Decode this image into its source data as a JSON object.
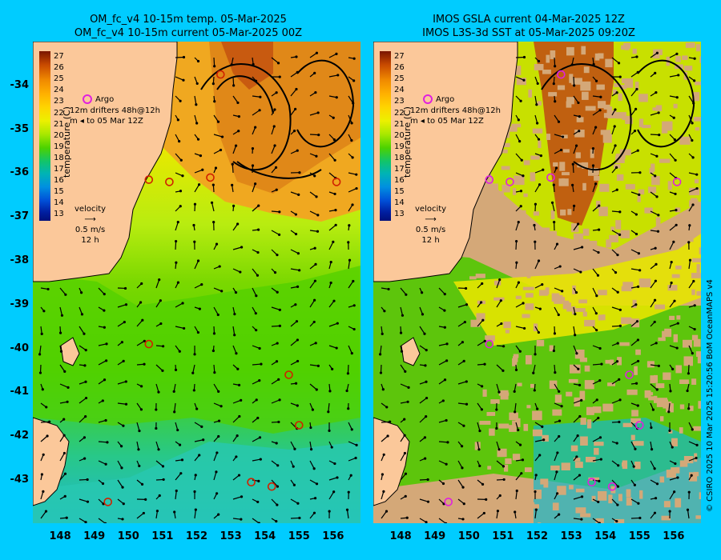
{
  "left_panel": {
    "title_line1": "OM_fc_v4  10-15m temp. 05-Mar-2025",
    "title_line2": "OM_fc_v4  10-15m current 05-Mar-2025 00Z"
  },
  "right_panel": {
    "title_line1": "IMOS GSLA current 04-Mar-2025 12Z",
    "title_line2": "IMOS L3S-3d SST at 05-Mar-2025 09:20Z"
  },
  "colorbar": {
    "title": "temperature (C)",
    "ticks": [
      "27",
      "26",
      "25",
      "24",
      "23",
      "22",
      "21",
      "20",
      "19",
      "18",
      "17",
      "16",
      "15",
      "14",
      "13"
    ]
  },
  "legend": {
    "argo": "Argo",
    "drifters_line1": "drifters 48h@12h",
    "drifters_line2": "to 05 Mar 12Z",
    "drifter_side": "12m",
    "drifter_side2": "m",
    "velocity_title": "velocity",
    "velocity_value": "0.5 m/s",
    "velocity_period": "12 h"
  },
  "axes": {
    "lat_ticks": [
      "-34",
      "-35",
      "-36",
      "-37",
      "-38",
      "-39",
      "-40",
      "-41",
      "-42",
      "-43"
    ],
    "lon_ticks": [
      "148",
      "149",
      "150",
      "151",
      "152",
      "153",
      "154",
      "155",
      "156"
    ]
  },
  "credit": "© CSIRO 2025  10 Mar 2025 15:20:56 BoM OceanMAPS v4",
  "colors": {
    "land": "#fbc89a",
    "ocean_bg": "#00ccff",
    "argo": "#e020e0",
    "warm_eddy": "#e07a10",
    "coastline": "#000000"
  },
  "argo_floats": [
    {
      "lon": 152.7,
      "lat": -33.75
    },
    {
      "lon": 150.6,
      "lat": -36.15
    },
    {
      "lon": 151.2,
      "lat": -36.2
    },
    {
      "lon": 152.4,
      "lat": -36.1
    },
    {
      "lon": 156.1,
      "lat": -36.2
    },
    {
      "lon": 150.6,
      "lat": -39.9
    },
    {
      "lon": 154.7,
      "lat": -40.6
    },
    {
      "lon": 155.0,
      "lat": -41.75
    },
    {
      "lon": 149.4,
      "lat": -43.5
    },
    {
      "lon": 153.6,
      "lat": -43.05
    },
    {
      "lon": 154.2,
      "lat": -43.15
    }
  ]
}
